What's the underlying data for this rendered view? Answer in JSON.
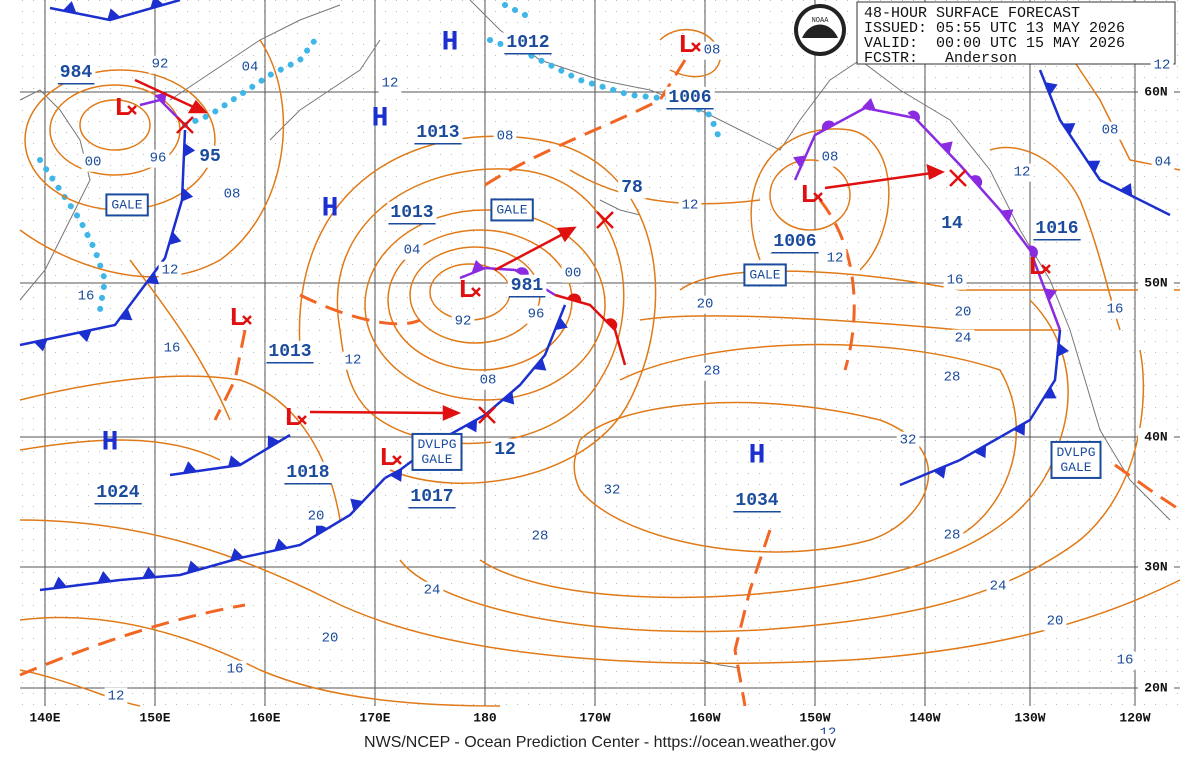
{
  "header": {
    "title": "48-HOUR SURFACE FORECAST",
    "issued": "ISSUED: 05:55 UTC 13 MAY 2026",
    "valid": "VALID:  00:00 UTC 15 MAY 2026",
    "forecaster": "FCSTR:   Anderson"
  },
  "logo": "NOAA",
  "longitudes": [
    "140E",
    "150E",
    "160E",
    "170E",
    "180",
    "170W",
    "160W",
    "150W",
    "140W",
    "130W",
    "120W"
  ],
  "latitudes": [
    "60N",
    "50N",
    "40N",
    "30N",
    "20N"
  ],
  "centers": [
    {
      "symbol": "H",
      "pressure": "1012"
    },
    {
      "symbol": "H",
      "pressure": "1013"
    },
    {
      "symbol": "H",
      "pressure": "1013"
    },
    {
      "symbol": "H",
      "pressure": "1024"
    },
    {
      "symbol": "H",
      "pressure": "1034"
    },
    {
      "symbol": "L",
      "pressure": "984"
    },
    {
      "symbol": "L",
      "pressure": "1006"
    },
    {
      "symbol": "L",
      "pressure": "981"
    },
    {
      "symbol": "L",
      "pressure": "1013"
    },
    {
      "symbol": "L",
      "pressure": "1018"
    },
    {
      "symbol": "L",
      "pressure": "1017"
    },
    {
      "symbol": "L",
      "pressure": "1006"
    },
    {
      "symbol": "L",
      "pressure": "1016"
    }
  ],
  "future_positions": [
    "95",
    "12",
    "78",
    "14"
  ],
  "isobar_labels": [
    "92",
    "04",
    "12",
    "08",
    "00",
    "96",
    "08",
    "12",
    "16",
    "04",
    "00",
    "96",
    "92",
    "08",
    "12",
    "16",
    "12",
    "08",
    "12",
    "16",
    "20",
    "20",
    "24",
    "28",
    "28",
    "32",
    "32",
    "28",
    "28",
    "24",
    "24",
    "20",
    "20",
    "20",
    "16",
    "16",
    "12",
    "12",
    "12",
    "16",
    "08",
    "04",
    "08",
    "12"
  ],
  "warnings": [
    {
      "lines": [
        "GALE"
      ]
    },
    {
      "lines": [
        "GALE"
      ]
    },
    {
      "lines": [
        "GALE"
      ]
    },
    {
      "lines": [
        "DVLPG",
        "GALE"
      ]
    },
    {
      "lines": [
        "DVLPG",
        "GALE"
      ]
    }
  ],
  "footer": "NWS/NCEP - Ocean Prediction Center - https://ocean.weather.gov"
}
